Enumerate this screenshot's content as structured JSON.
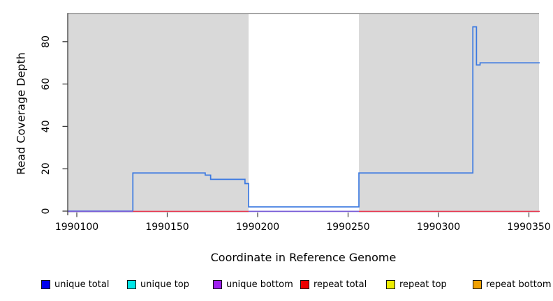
{
  "chart_data": {
    "type": "line",
    "title": "",
    "xlabel": "Coordinate in Reference Genome",
    "ylabel": "Read Coverage Depth",
    "xlim": [
      1990095,
      1990356
    ],
    "ylim": [
      0,
      93
    ],
    "x_ticks": [
      1990100,
      1990150,
      1990200,
      1990250,
      1990300,
      1990350
    ],
    "y_ticks": [
      0,
      20,
      40,
      60,
      80
    ],
    "grid": false,
    "legend_position": "bottom",
    "panel": {
      "background_color": "#d9d9d9",
      "no_data_region": {
        "from": 1990195,
        "to": 1990256,
        "color": "#ffffff"
      },
      "top_border_color": "#999999"
    },
    "series": [
      {
        "name": "unique total",
        "type": "step",
        "color": "#3b79e1",
        "steps": [
          [
            1990095,
            0
          ],
          [
            1990131,
            18
          ],
          [
            1990171,
            17
          ],
          [
            1990174,
            15
          ],
          [
            1990193,
            13
          ],
          [
            1990195,
            2
          ],
          [
            1990256,
            18
          ],
          [
            1990319,
            87
          ],
          [
            1990321,
            69
          ],
          [
            1990323,
            70
          ]
        ],
        "x_end": 1990356
      },
      {
        "name": "repeat total baseline",
        "type": "baseline",
        "color": "#e73851",
        "depth": 0,
        "segments": [
          [
            1990131,
            1990195
          ],
          [
            1990256,
            1990356
          ]
        ]
      },
      {
        "name": "unique bottom baseline",
        "type": "baseline",
        "color": "#7a5fd8",
        "depth": 0,
        "segments": [
          [
            1990095,
            1990131
          ],
          [
            1990195,
            1990256
          ]
        ]
      }
    ]
  },
  "legend": {
    "items": [
      {
        "label": "unique total",
        "color": "#0000ee"
      },
      {
        "label": "unique top",
        "color": "#00e6e6"
      },
      {
        "label": "unique bottom",
        "color": "#a020f0"
      },
      {
        "label": "repeat total",
        "color": "#ee0000"
      },
      {
        "label": "repeat top",
        "color": "#eded00"
      },
      {
        "label": "repeat bottom",
        "color": "#f0a000"
      }
    ]
  }
}
